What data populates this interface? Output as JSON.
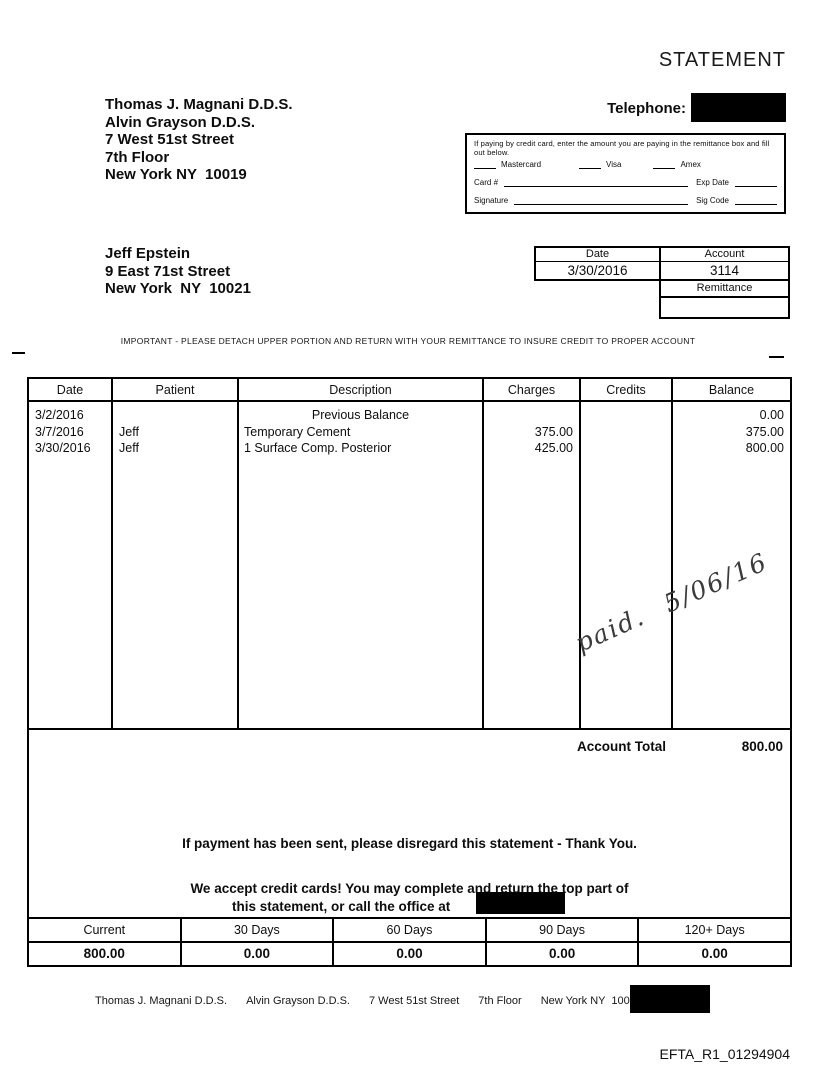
{
  "title": "STATEMENT",
  "practice": {
    "lines": [
      "Thomas J. Magnani D.D.S.",
      "Alvin Grayson D.D.S.",
      "7 West 51st Street",
      "7th Floor",
      "New York NY  10019"
    ]
  },
  "telephone_label": "Telephone:",
  "cc": {
    "instructions": "If paying by credit card, enter the amount you are paying in the remittance box and fill out below.",
    "options": [
      "Mastercard",
      "Visa",
      "Amex"
    ],
    "card_label": "Card #",
    "exp_label": "Exp Date",
    "sig_label": "Signature",
    "sigcode_label": "Sig Code"
  },
  "patient": {
    "lines": [
      "Jeff Epstein",
      "9 East 71st Street",
      "New York  NY  10021"
    ]
  },
  "info": {
    "date_label": "Date",
    "date_value": "3/30/2016",
    "account_label": "Account",
    "account_value": "3114",
    "remittance_label": "Remittance",
    "remittance_value": ""
  },
  "detach_notice": "IMPORTANT - PLEASE DETACH UPPER PORTION AND RETURN WITH YOUR REMITTANCE TO INSURE CREDIT TO PROPER ACCOUNT",
  "ledger": {
    "columns": [
      "Date",
      "Patient",
      "Description",
      "Charges",
      "Credits",
      "Balance"
    ],
    "rows": [
      {
        "date": "3/2/2016",
        "patient": "",
        "description": "Previous Balance",
        "charges": "",
        "credits": "",
        "balance": "0.00"
      },
      {
        "date": "3/7/2016",
        "patient": "Jeff",
        "description": "Temporary Cement",
        "charges": "375.00",
        "credits": "",
        "balance": "375.00"
      },
      {
        "date": "3/30/2016",
        "patient": "Jeff",
        "description": "1 Surface Comp. Posterior",
        "charges": "425.00",
        "credits": "",
        "balance": "800.00"
      }
    ]
  },
  "handwriting": {
    "word": "paid.",
    "date": "5/06/16"
  },
  "totals": {
    "label": "Account Total",
    "value": "800.00"
  },
  "messages": [
    "If payment has been sent, please disregard this statement - Thank You.",
    "We accept credit cards!  You may complete and return the top part of",
    "this statement, or call the office at"
  ],
  "aging": {
    "columns": [
      "Current",
      "30 Days",
      "60 Days",
      "90 Days",
      "120+ Days"
    ],
    "values": [
      "800.00",
      "0.00",
      "0.00",
      "0.00",
      "0.00"
    ]
  },
  "footer": {
    "items": [
      "Thomas J. Magnani D.D.S.",
      "Alvin Grayson D.D.S.",
      "7 West 51st Street",
      "7th Floor",
      "New York NY  10019"
    ]
  },
  "doc_id": "EFTA_R1_01294904"
}
